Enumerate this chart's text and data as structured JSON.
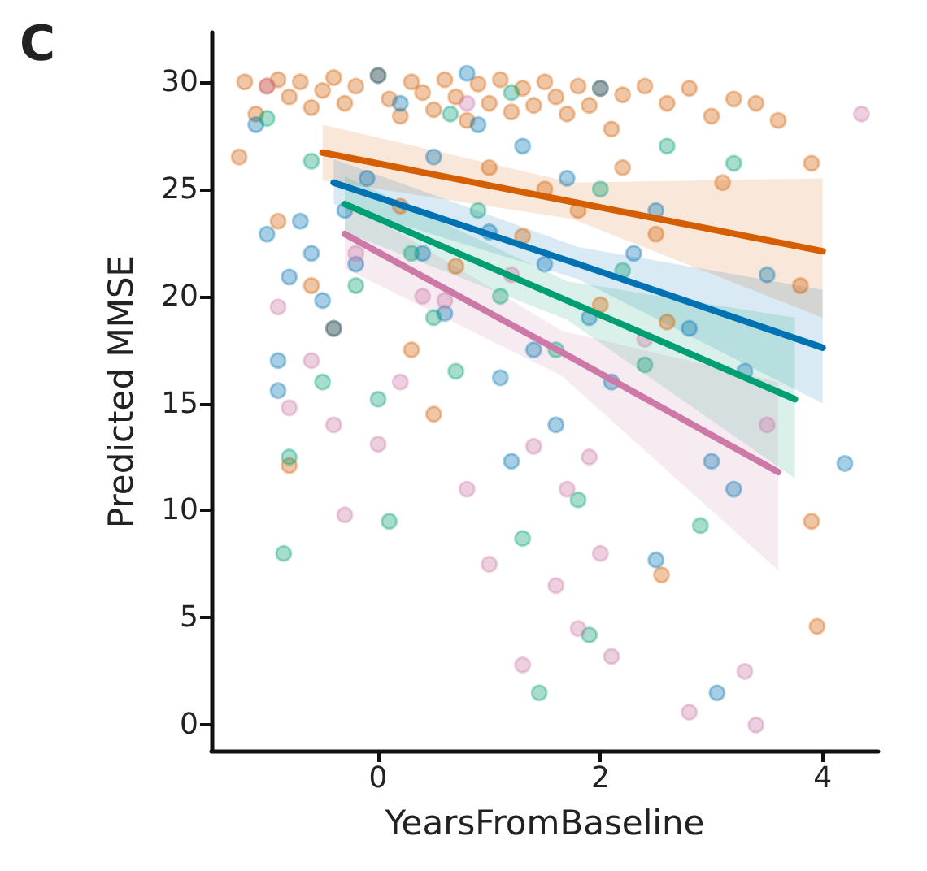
{
  "chart_data": {
    "type": "scatter",
    "xlabel": "YearsFromBaseline",
    "ylabel": "Predicted MMSE",
    "annotations": [
      "C"
    ],
    "xlim": [
      -1.5,
      4.5
    ],
    "xticks": [
      0,
      2,
      4
    ],
    "ylim": [
      -1.2,
      32.3
    ],
    "yticks": [
      0,
      5,
      10,
      15,
      20,
      25,
      30
    ],
    "grid": false,
    "series": [
      {
        "type": "scatter",
        "marker": "circle",
        "color": "#d55e00",
        "x": [
          -1.2,
          -1.1,
          -1.0,
          -0.9,
          -0.8,
          -0.7,
          -0.6,
          -0.5,
          -0.4,
          -0.3,
          -0.2,
          0,
          0.1,
          0.2,
          0.3,
          0.4,
          0.5,
          0.6,
          0.7,
          0.8,
          0.9,
          1.0,
          1.1,
          1.2,
          1.3,
          1.4,
          1.5,
          1.6,
          1.7,
          1.8,
          1.9,
          2.0,
          2.1,
          2.2,
          2.4,
          2.6,
          2.8,
          3.0,
          3.2,
          3.4,
          3.6,
          3.9,
          -1.25,
          -0.9,
          -0.8,
          -0.6,
          -0.4,
          0.2,
          0.5,
          0.7,
          1.0,
          1.3,
          1.5,
          1.8,
          2.2,
          2.5,
          2.6,
          3.1,
          2.55,
          3.9,
          3.95,
          0.3,
          2.0,
          3.8
        ],
        "values": [
          30,
          28.5,
          29.8,
          30.1,
          29.3,
          30,
          28.8,
          29.6,
          30.2,
          29,
          29.8,
          30.3,
          29.2,
          28.4,
          30,
          29.5,
          28.7,
          30.1,
          29.3,
          28.2,
          29.9,
          29,
          30.1,
          28.6,
          29.7,
          28.9,
          30,
          29.3,
          28.5,
          29.8,
          28.9,
          29.7,
          27.8,
          29.4,
          29.8,
          29,
          29.7,
          28.4,
          29.2,
          29,
          28.2,
          26.2,
          26.5,
          23.5,
          12.1,
          20.5,
          18.5,
          24.2,
          14.5,
          21.4,
          26,
          22.8,
          25,
          24,
          26,
          22.9,
          18.8,
          25.3,
          7,
          9.5,
          4.6,
          17.5,
          19.6,
          20.5
        ]
      },
      {
        "type": "scatter",
        "marker": "circle",
        "color": "#0072b2",
        "x": [
          -1.0,
          -0.9,
          -0.8,
          -0.7,
          -0.6,
          -0.5,
          -0.4,
          -0.3,
          -0.2,
          -0.1,
          0,
          0.2,
          0.4,
          0.5,
          0.6,
          0.8,
          0.9,
          1.0,
          1.1,
          1.2,
          1.3,
          1.4,
          1.5,
          1.6,
          1.7,
          1.9,
          2.0,
          2.1,
          2.3,
          2.5,
          2.8,
          3.0,
          3.2,
          3.3,
          3.5,
          4.2,
          3.05,
          2.5,
          -0.9,
          -1.1
        ],
        "values": [
          22.9,
          17,
          20.9,
          23.5,
          22,
          19.8,
          18.5,
          24,
          21.5,
          25.5,
          30.3,
          29,
          22,
          26.5,
          19.2,
          30.4,
          28,
          23,
          16.2,
          12.3,
          27,
          17.5,
          21.5,
          14,
          25.5,
          19,
          29.7,
          16,
          22,
          24,
          18.5,
          12.3,
          11,
          16.5,
          21,
          12.2,
          1.5,
          7.7,
          15.6,
          28
        ]
      },
      {
        "type": "scatter",
        "marker": "circle",
        "color": "#009e73",
        "x": [
          -1.0,
          -0.8,
          -0.6,
          -0.5,
          -0.2,
          0,
          0.1,
          0.3,
          0.5,
          0.7,
          0.9,
          1.1,
          1.3,
          1.45,
          1.6,
          1.8,
          1.9,
          2.0,
          2.2,
          2.4,
          2.6,
          2.9,
          3.2,
          -0.85,
          0.65,
          1.2
        ],
        "values": [
          28.3,
          12.5,
          26.3,
          16,
          20.5,
          15.2,
          9.5,
          22,
          19,
          16.5,
          24,
          20,
          8.7,
          1.5,
          17.5,
          10.5,
          4.2,
          25,
          21.2,
          16.8,
          27,
          9.3,
          26.2,
          8,
          28.5,
          29.5
        ]
      },
      {
        "type": "scatter",
        "marker": "circle",
        "color": "#cc79a7",
        "x": [
          -1.0,
          -0.9,
          -0.8,
          -0.6,
          -0.4,
          -0.3,
          -0.2,
          0,
          0.2,
          0.4,
          0.6,
          0.8,
          1.0,
          1.2,
          1.3,
          1.4,
          1.6,
          1.7,
          1.8,
          2.0,
          2.1,
          2.4,
          2.8,
          3.3,
          3.4,
          3.5,
          4.35,
          0.8,
          1.9
        ],
        "values": [
          29.8,
          19.5,
          14.8,
          17,
          14,
          9.8,
          22,
          13.1,
          16,
          20,
          19.8,
          11,
          7.5,
          21,
          2.8,
          13,
          6.5,
          11,
          4.5,
          8,
          3.2,
          18,
          0.6,
          2.5,
          0,
          14,
          28.5,
          29,
          12.5
        ]
      },
      {
        "type": "line",
        "marker": "none",
        "color": "#d55e00",
        "x": [
          -0.5,
          1.75,
          4
        ],
        "values": [
          26.7,
          24.4,
          22.1
        ],
        "lower": [
          25.4,
          23.6,
          19
        ],
        "upper": [
          28,
          25.3,
          25.5
        ]
      },
      {
        "type": "line",
        "marker": "none",
        "color": "#0072b2",
        "x": [
          -0.4,
          1.8,
          4
        ],
        "values": [
          25.3,
          21.5,
          17.6
        ],
        "lower": [
          24.3,
          20.8,
          15
        ],
        "upper": [
          26.4,
          22.3,
          20.3
        ]
      },
      {
        "type": "line",
        "marker": "none",
        "color": "#009e73",
        "x": [
          -0.3,
          1.7,
          3.75
        ],
        "values": [
          24.3,
          19.8,
          15.2
        ],
        "lower": [
          23,
          18.9,
          11.5
        ],
        "upper": [
          25.6,
          20.7,
          19
        ]
      },
      {
        "type": "line",
        "marker": "none",
        "color": "#cc79a7",
        "x": [
          -0.3,
          1.65,
          3.6
        ],
        "values": [
          22.9,
          17.4,
          11.8
        ],
        "lower": [
          21.3,
          16.3,
          7.2
        ],
        "upper": [
          24.5,
          18.4,
          16
        ]
      }
    ]
  }
}
